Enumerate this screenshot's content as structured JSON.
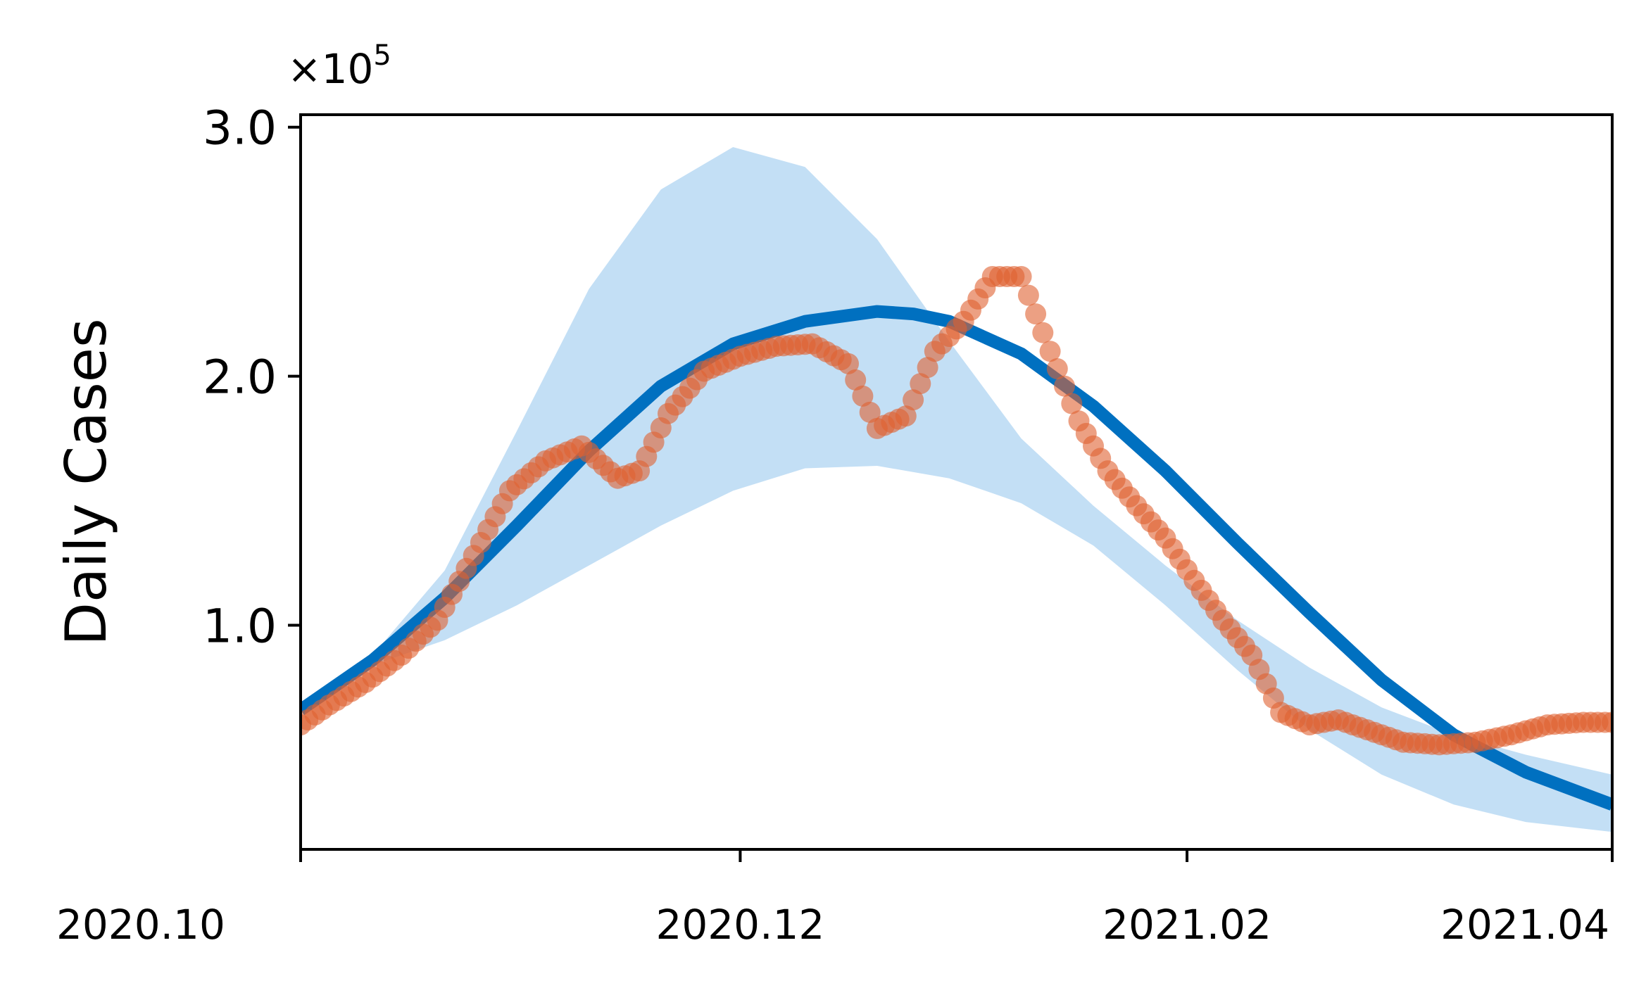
{
  "chart_data": {
    "type": "line",
    "ylabel": "Daily Cases",
    "xlabel": "",
    "y_multiplier": "×10",
    "y_multiplier_exp": "5",
    "x_range": [
      "2020-10-01",
      "2021-04-01"
    ],
    "ylim": [
      0.1,
      3.05
    ],
    "yticks": [
      1.0,
      2.0,
      3.0
    ],
    "ytick_labels": [
      "1.0",
      "2.0",
      "3.0"
    ],
    "xticks": [
      "2020-10-01",
      "2020-12-01",
      "2021-02-01",
      "2021-04-01"
    ],
    "xtick_labels": [
      "2020.10",
      "2020.12",
      "2021.02",
      "2021.04"
    ],
    "grid": false,
    "colors": {
      "fit": "#0070c0",
      "band": "#c3dff5",
      "observed": "#e06030"
    },
    "fit": {
      "x": [
        "2020-10-01",
        "2020-10-11",
        "2020-10-21",
        "2020-10-31",
        "2020-11-10",
        "2020-11-20",
        "2020-11-30",
        "2020-12-10",
        "2020-12-20",
        "2020-12-25",
        "2020-12-30",
        "2021-01-09",
        "2021-01-19",
        "2021-01-29",
        "2021-02-08",
        "2021-02-18",
        "2021-02-28",
        "2021-03-10",
        "2021-03-20",
        "2021-04-01"
      ],
      "y": [
        0.66,
        0.86,
        1.11,
        1.4,
        1.7,
        1.96,
        2.13,
        2.22,
        2.26,
        2.25,
        2.22,
        2.09,
        1.88,
        1.62,
        1.33,
        1.05,
        0.78,
        0.56,
        0.41,
        0.28
      ]
    },
    "band": {
      "x": [
        "2020-10-01",
        "2020-10-11",
        "2020-10-21",
        "2020-10-31",
        "2020-11-10",
        "2020-11-20",
        "2020-11-30",
        "2020-12-10",
        "2020-12-20",
        "2020-12-30",
        "2021-01-09",
        "2021-01-19",
        "2021-01-29",
        "2021-02-08",
        "2021-02-18",
        "2021-02-28",
        "2021-03-10",
        "2021-03-20",
        "2021-04-01"
      ],
      "upper": [
        0.66,
        0.88,
        1.22,
        1.78,
        2.35,
        2.75,
        2.92,
        2.84,
        2.55,
        2.14,
        1.75,
        1.48,
        1.24,
        1.02,
        0.83,
        0.67,
        0.56,
        0.48,
        0.4
      ],
      "lower": [
        0.66,
        0.84,
        0.94,
        1.08,
        1.24,
        1.4,
        1.54,
        1.63,
        1.64,
        1.59,
        1.49,
        1.32,
        1.08,
        0.82,
        0.58,
        0.4,
        0.28,
        0.21,
        0.17
      ]
    },
    "observed": {
      "x": [
        "2020-10-01",
        "2020-10-05",
        "2020-10-10",
        "2020-10-15",
        "2020-10-20",
        "2020-10-25",
        "2020-10-30",
        "2020-11-04",
        "2020-11-09",
        "2020-11-14",
        "2020-11-17",
        "2020-11-21",
        "2020-11-26",
        "2020-12-01",
        "2020-12-06",
        "2020-12-11",
        "2020-12-16",
        "2020-12-20",
        "2020-12-24",
        "2020-12-28",
        "2021-01-01",
        "2021-01-05",
        "2021-01-09",
        "2021-01-13",
        "2021-01-17",
        "2021-01-21",
        "2021-01-25",
        "2021-01-29",
        "2021-02-02",
        "2021-02-06",
        "2021-02-10",
        "2021-02-14",
        "2021-02-18",
        "2021-02-22",
        "2021-02-26",
        "2021-03-03",
        "2021-03-08",
        "2021-03-13",
        "2021-03-18",
        "2021-03-23",
        "2021-03-28",
        "2021-04-01"
      ],
      "y": [
        0.6,
        0.68,
        0.77,
        0.88,
        1.02,
        1.28,
        1.54,
        1.66,
        1.72,
        1.59,
        1.62,
        1.85,
        2.02,
        2.08,
        2.12,
        2.13,
        2.05,
        1.79,
        1.84,
        2.1,
        2.22,
        2.4,
        2.4,
        2.1,
        1.82,
        1.62,
        1.48,
        1.35,
        1.18,
        1.02,
        0.88,
        0.65,
        0.6,
        0.62,
        0.58,
        0.53,
        0.52,
        0.53,
        0.56,
        0.6,
        0.61,
        0.61
      ]
    }
  }
}
